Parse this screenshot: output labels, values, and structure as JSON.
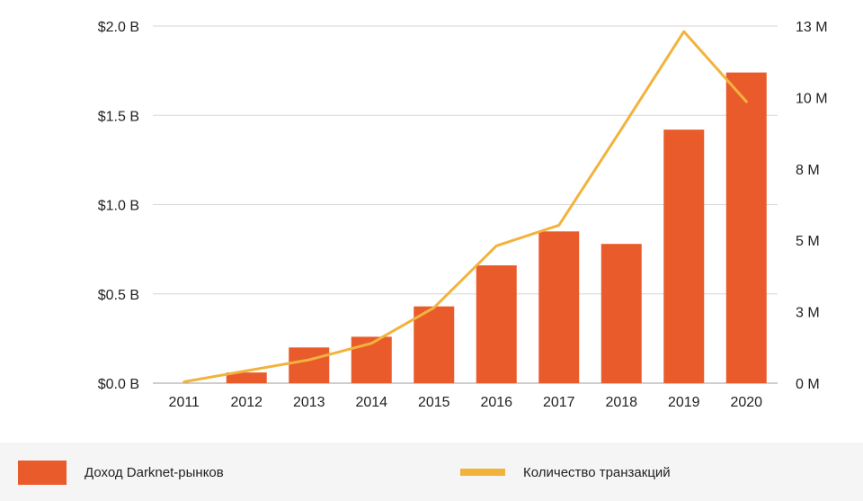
{
  "colors": {
    "bar": "#ea5b2c",
    "line": "#f2b33d",
    "grid": "#d6d6d6",
    "axis_text": "#222222",
    "legend_bg": "#f5f5f5"
  },
  "legend": {
    "placement": "bottom",
    "bar_label": "Доход Darknet-рынков",
    "line_label": "Количество транзакций"
  },
  "chart_data": {
    "type": "bar",
    "title": "",
    "xlabel": "",
    "ylabel": "",
    "grid": true,
    "categories": [
      "2011",
      "2012",
      "2013",
      "2014",
      "2015",
      "2016",
      "2017",
      "2018",
      "2019",
      "2020"
    ],
    "series": [
      {
        "name": "Доход Darknet-рынков",
        "type": "bar",
        "axis": "left",
        "unit": "USD billions",
        "values": [
          0.0,
          0.06,
          0.2,
          0.26,
          0.43,
          0.66,
          0.85,
          0.78,
          1.42,
          1.74
        ]
      },
      {
        "name": "Количество транзакций",
        "type": "line",
        "axis": "right",
        "unit": "millions",
        "values": [
          0.05,
          0.45,
          0.85,
          1.45,
          2.75,
          5.0,
          5.75,
          9.25,
          12.8,
          10.25
        ]
      }
    ],
    "y_left": {
      "lim": [
        0,
        2.0
      ],
      "ticks": [
        0,
        0.5,
        1.0,
        1.5,
        2.0
      ],
      "tick_labels": [
        "$0.0 B",
        "$0.5 B",
        "$1.0 B",
        "$1.5 B",
        "$2.0 B"
      ]
    },
    "y_right": {
      "lim": [
        0,
        13
      ],
      "ticks": [
        0,
        2.6,
        5.2,
        7.8,
        10.4,
        13
      ],
      "tick_labels": [
        "0 M",
        "3 M",
        "5 M",
        "8 M",
        "10 M",
        "13 M"
      ]
    }
  }
}
